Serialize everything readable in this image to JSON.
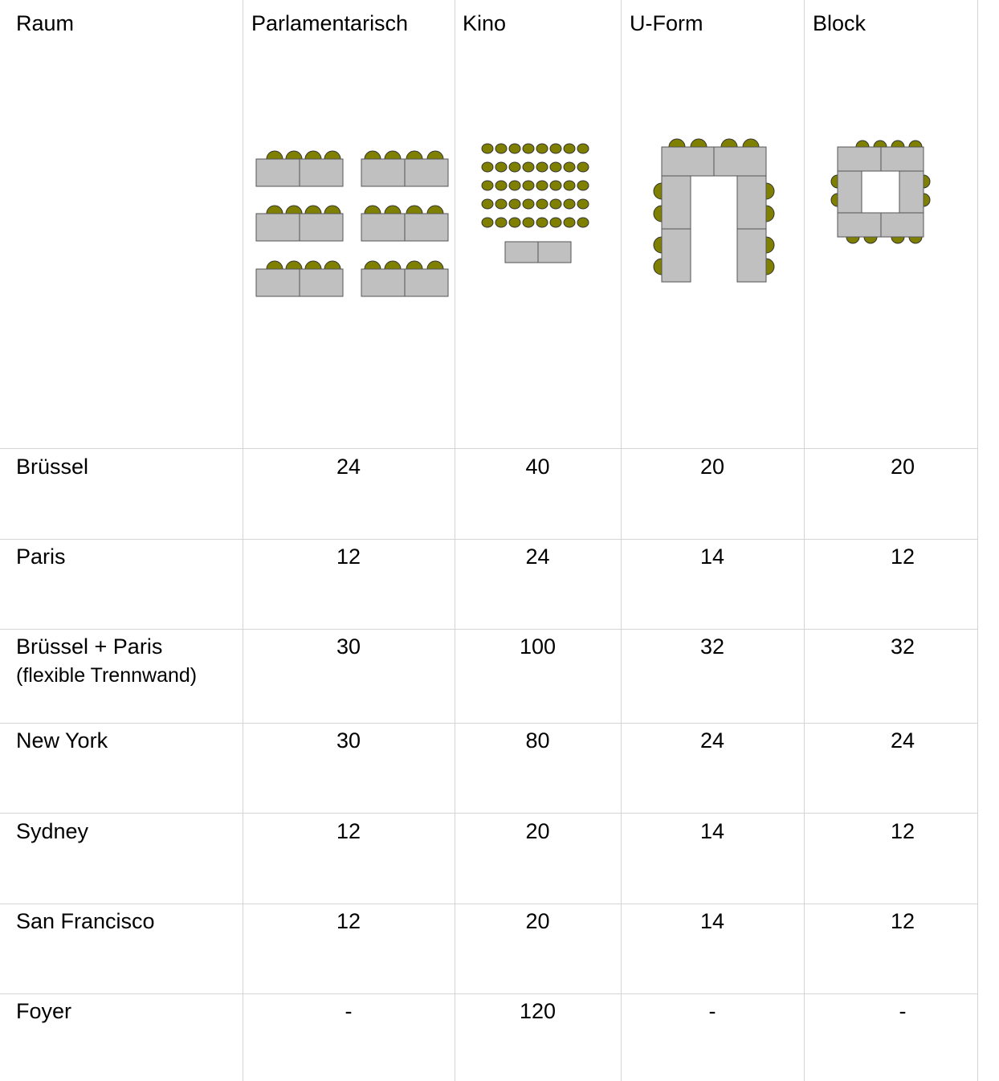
{
  "table": {
    "header": {
      "room": "Raum",
      "columns": [
        "Parlamentarisch",
        "Kino",
        "U-Form",
        "Block"
      ]
    },
    "rows": [
      {
        "room": "Brüssel",
        "values": [
          "24",
          "40",
          "20",
          "20"
        ]
      },
      {
        "room": "Paris",
        "values": [
          "12",
          "24",
          "14",
          "12"
        ]
      },
      {
        "room": "Brüssel + Paris",
        "room_note": "(flexible Trennwand)",
        "values": [
          "30",
          "100",
          "32",
          "32"
        ]
      },
      {
        "room": "New York",
        "values": [
          "30",
          "80",
          "24",
          "24"
        ]
      },
      {
        "room": "Sydney",
        "values": [
          "12",
          "20",
          "14",
          "12"
        ]
      },
      {
        "room": "San Francisco",
        "values": [
          "12",
          "20",
          "14",
          "12"
        ]
      },
      {
        "room": "Foyer",
        "values": [
          "-",
          "120",
          "-",
          "-"
        ]
      }
    ]
  },
  "colors": {
    "table_fill": "#c0c0c0",
    "chair_fill": "#808000",
    "grid_lines": "#d4d4d4"
  }
}
